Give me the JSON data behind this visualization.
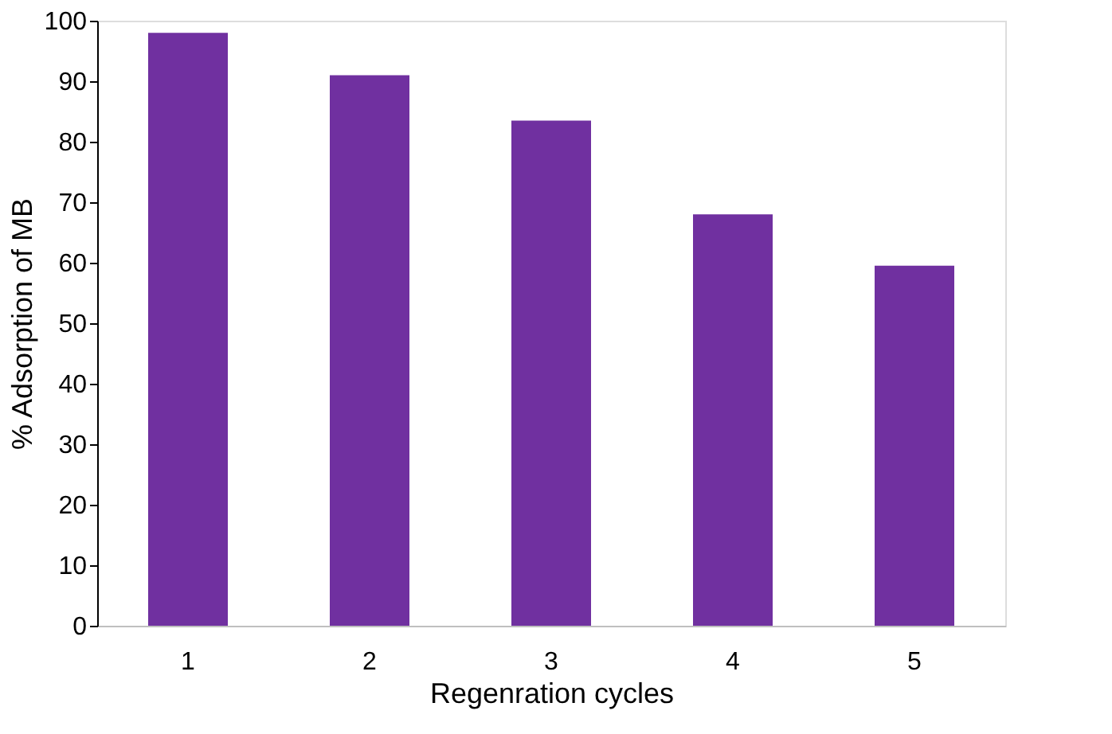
{
  "chart_data": {
    "type": "bar",
    "xlabel": "Regenration cycles",
    "ylabel": "% Adsorption of MB",
    "categories": [
      "1",
      "2",
      "3",
      "4",
      "5"
    ],
    "values": [
      98,
      91,
      83.5,
      68,
      59.5
    ],
    "color": "#7030a0",
    "ylim": [
      0,
      100
    ],
    "yticks": [
      0,
      10,
      20,
      30,
      40,
      50,
      60,
      70,
      80,
      90,
      100
    ],
    "grid": false
  }
}
